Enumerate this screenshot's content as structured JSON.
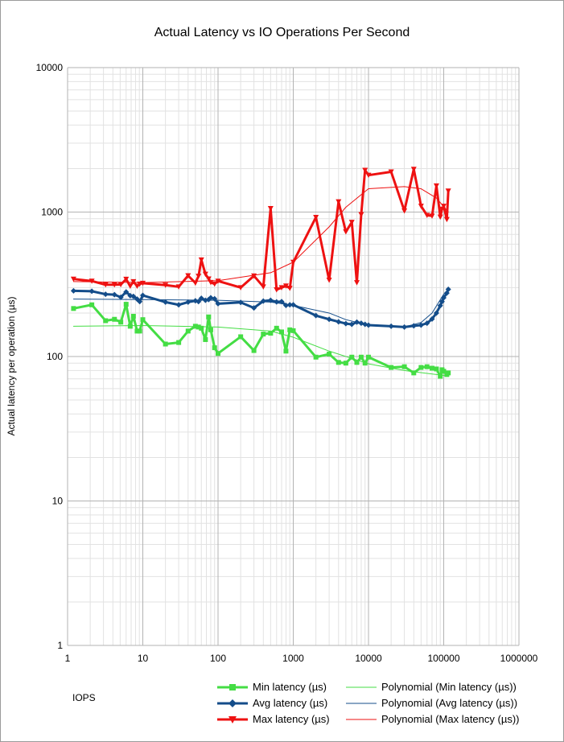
{
  "chart_data": {
    "type": "line",
    "title": "Actual Latency vs IO Operations Per Second",
    "xlabel": "IOPS",
    "ylabel": "Actual latency per operation (µs)",
    "xscale": "log",
    "yscale": "log",
    "xlim": [
      1,
      1000000
    ],
    "ylim": [
      1,
      10000
    ],
    "xticks": [
      "1",
      "10",
      "100",
      "1000",
      "10000",
      "100000",
      "1000000"
    ],
    "yticks": [
      "1",
      "10",
      "100",
      "1000",
      "10000"
    ],
    "grid": true,
    "legend_position": "bottom",
    "series": [
      {
        "name": "Min latency (µs)",
        "color": "#44dd44",
        "marker": "square",
        "x": [
          1.2,
          2.1,
          3.2,
          4.2,
          5.1,
          6.0,
          6.8,
          7.5,
          8.4,
          9.1,
          10,
          20,
          30,
          40,
          50,
          55,
          60,
          68,
          75,
          80,
          90,
          100,
          200,
          300,
          400,
          500,
          600,
          700,
          800,
          900,
          1000,
          2000,
          3000,
          4000,
          5000,
          6000,
          7000,
          8000,
          9000,
          10000,
          20000,
          30000,
          40000,
          50000,
          60000,
          70000,
          80000,
          90000,
          95000,
          100000,
          110000,
          115000
        ],
        "y": [
          215,
          228,
          177,
          181,
          173,
          230,
          162,
          190,
          150,
          150,
          180,
          122,
          125,
          150,
          162,
          160,
          157,
          131,
          188,
          153,
          115,
          105,
          137,
          110,
          143,
          145,
          157,
          148,
          109,
          153,
          151,
          99,
          104,
          91,
          90,
          99,
          91,
          99,
          90,
          99,
          84,
          85,
          77,
          84,
          85,
          83,
          82,
          73,
          81,
          79,
          75,
          77
        ]
      },
      {
        "name": "Avg latency (µs)",
        "color": "#144d8a",
        "marker": "diamond",
        "x": [
          1.2,
          2.1,
          3.2,
          4.2,
          5.1,
          6.0,
          6.8,
          7.5,
          8.4,
          9.1,
          10,
          20,
          30,
          40,
          50,
          55,
          60,
          68,
          75,
          80,
          90,
          100,
          200,
          300,
          400,
          500,
          600,
          700,
          800,
          900,
          1000,
          2000,
          3000,
          4000,
          5000,
          6000,
          7000,
          8000,
          9000,
          10000,
          20000,
          30000,
          40000,
          50000,
          60000,
          70000,
          80000,
          90000,
          95000,
          100000,
          110000,
          115000
        ],
        "y": [
          285,
          283,
          270,
          268,
          257,
          280,
          264,
          261,
          250,
          240,
          265,
          238,
          228,
          238,
          243,
          240,
          253,
          245,
          248,
          255,
          251,
          232,
          237,
          217,
          242,
          245,
          239,
          240,
          226,
          228,
          228,
          192,
          181,
          174,
          169,
          167,
          173,
          170,
          167,
          165,
          162,
          160,
          163,
          165,
          170,
          182,
          200,
          225,
          240,
          255,
          275,
          292
        ]
      },
      {
        "name": "Max latency (µs)",
        "color": "#ee1111",
        "marker": "triangle-down",
        "x": [
          1.2,
          2.1,
          3.2,
          4.2,
          5.1,
          6.0,
          6.8,
          7.5,
          8.4,
          9.1,
          10,
          20,
          30,
          40,
          50,
          55,
          60,
          68,
          75,
          80,
          90,
          100,
          200,
          300,
          400,
          500,
          600,
          700,
          800,
          900,
          1000,
          2000,
          3000,
          4000,
          5000,
          6000,
          7000,
          8000,
          9000,
          10000,
          20000,
          30000,
          40000,
          50000,
          60000,
          70000,
          80000,
          90000,
          95000,
          100000,
          110000,
          115000
        ],
        "y": [
          344,
          333,
          314,
          314,
          315,
          343,
          307,
          330,
          307,
          318,
          322,
          312,
          304,
          363,
          323,
          360,
          467,
          372,
          345,
          326,
          318,
          333,
          300,
          362,
          304,
          1060,
          290,
          300,
          308,
          297,
          450,
          920,
          338,
          1180,
          730,
          850,
          325,
          960,
          1950,
          1800,
          1900,
          1020,
          1980,
          1100,
          950,
          940,
          1520,
          925,
          1050,
          1100,
          890,
          1400
        ]
      },
      {
        "name": "Polynomial (Min latency (µs))",
        "color": "#44dd44",
        "marker": "none",
        "x": [
          1.2,
          10,
          100,
          500,
          1000,
          3000,
          10000,
          30000,
          100000,
          115000
        ],
        "y": [
          162,
          164,
          160,
          150,
          136,
          109,
          89,
          80,
          74,
          73
        ]
      },
      {
        "name": "Polynomial (Avg latency (µs))",
        "color": "#144d8a",
        "marker": "none",
        "x": [
          1.2,
          10,
          100,
          500,
          1000,
          3000,
          5000,
          10000,
          30000,
          50000,
          70000,
          100000,
          115000
        ],
        "y": [
          250,
          248,
          245,
          238,
          226,
          200,
          180,
          165,
          160,
          172,
          200,
          270,
          292
        ]
      },
      {
        "name": "Polynomial (Max latency (µs))",
        "color": "#ee1111",
        "marker": "none",
        "x": [
          1.2,
          10,
          100,
          500,
          1000,
          3000,
          5000,
          10000,
          30000,
          50000,
          80000,
          115000
        ],
        "y": [
          330,
          325,
          335,
          380,
          450,
          790,
          1080,
          1450,
          1500,
          1450,
          1250,
          1000
        ]
      }
    ]
  },
  "legend": {
    "items": [
      {
        "label": "Min latency (µs)",
        "color": "#44dd44",
        "marker": "square"
      },
      {
        "label": "Polynomial (Min latency (µs))",
        "color": "#44dd44",
        "marker": "none"
      },
      {
        "label": "Avg latency (µs)",
        "color": "#144d8a",
        "marker": "diamond"
      },
      {
        "label": "Polynomial (Avg latency (µs))",
        "color": "#144d8a",
        "marker": "none"
      },
      {
        "label": "Max latency (µs)",
        "color": "#ee1111",
        "marker": "triangle-down"
      },
      {
        "label": "Polynomial (Max latency (µs))",
        "color": "#ee1111",
        "marker": "none"
      }
    ]
  }
}
